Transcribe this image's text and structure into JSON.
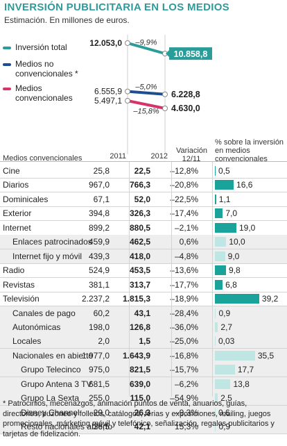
{
  "title": "INVERSIÓN PUBLICITARIA EN LOS MEDIOS",
  "subtitle": "Estimación. En millones de euros.",
  "colors": {
    "total": "#2a9d9a",
    "no_convencionales": "#1d4e8f",
    "convencionales": "#d6336c",
    "bar_main": "#1aa39a",
    "bar_sub": "#bfe6e3",
    "title": "#2e9a9a"
  },
  "chart_data": [
    {
      "type": "line",
      "x": [
        "2011",
        "2012"
      ],
      "series": [
        {
          "name": "Inversión total",
          "values": [
            12053.0,
            10858.8
          ],
          "labels": [
            "12.053,0",
            "10.858,8"
          ],
          "change": "–9,9%"
        },
        {
          "name": "Medios no convencionales *",
          "values": [
            6555.9,
            6228.8
          ],
          "labels": [
            "6.555,9",
            "6.228,8"
          ],
          "change": "–5,0%"
        },
        {
          "name": "Medios convencionales",
          "values": [
            5497.1,
            4630.0
          ],
          "labels": [
            "5.497,1",
            "4.630,0"
          ],
          "change": "–15,8%"
        }
      ]
    },
    {
      "type": "table",
      "columns": [
        "Medios convencionales",
        "2011",
        "2012",
        "Variación 12/11",
        "% sobre la inversión en medios convencionales"
      ],
      "rows": [
        {
          "name": "Cine",
          "level": 0,
          "v2011": "25,8",
          "v2012": "22,5",
          "var": "–12,8%",
          "pct": 0.5,
          "pct_label": "0,5"
        },
        {
          "name": "Diarios",
          "level": 0,
          "v2011": "967,0",
          "v2012": "766,3",
          "var": "–20,8%",
          "pct": 16.6,
          "pct_label": "16,6"
        },
        {
          "name": "Dominicales",
          "level": 0,
          "v2011": "67,1",
          "v2012": "52,0",
          "var": "–22,5%",
          "pct": 1.1,
          "pct_label": "1,1"
        },
        {
          "name": "Exterior",
          "level": 0,
          "v2011": "394,8",
          "v2012": "326,3",
          "var": "–17,4%",
          "pct": 7.0,
          "pct_label": "7,0"
        },
        {
          "name": "Internet",
          "level": 0,
          "v2011": "899,2",
          "v2012": "880,5",
          "var": "–2,1%",
          "pct": 19.0,
          "pct_label": "19,0"
        },
        {
          "name": "Enlaces patrocinados",
          "level": 1,
          "v2011": "459,9",
          "v2012": "462,5",
          "var": "0,6%",
          "pct": 10.0,
          "pct_label": "10,0"
        },
        {
          "name": "Internet fijo y móvil",
          "level": 1,
          "v2011": "439,3",
          "v2012": "418,0",
          "var": "–4,8%",
          "pct": 9.0,
          "pct_label": "9,0"
        },
        {
          "name": "Radio",
          "level": 0,
          "v2011": "524,9",
          "v2012": "453,5",
          "var": "–13,6%",
          "pct": 9.8,
          "pct_label": "9,8"
        },
        {
          "name": "Revistas",
          "level": 0,
          "v2011": "381,1",
          "v2012": "313,7",
          "var": "–17,7%",
          "pct": 6.8,
          "pct_label": "6,8"
        },
        {
          "name": "Televisión",
          "level": 0,
          "v2011": "2.237,2",
          "v2012": "1.815,3",
          "var": "–18,9%",
          "pct": 39.2,
          "pct_label": "39,2"
        },
        {
          "name": "Canales de pago",
          "level": 1,
          "v2011": "60,2",
          "v2012": "43,1",
          "var": "–28,4%",
          "pct": 0.9,
          "pct_label": "0,9"
        },
        {
          "name": "Autonómicas",
          "level": 1,
          "v2011": "198,0",
          "v2012": "126,8",
          "var": "–36,0%",
          "pct": 2.7,
          "pct_label": "2,7"
        },
        {
          "name": "Locales",
          "level": 1,
          "v2011": "2,0",
          "v2012": "1,5",
          "var": "–25,0%",
          "pct": 0.03,
          "pct_label": "0,03"
        },
        {
          "name": "Nacionales en abierto",
          "level": 1,
          "v2011": "1.977,0",
          "v2012": "1.643,9",
          "var": "–16,8%",
          "pct": 35.5,
          "pct_label": "35,5"
        },
        {
          "name": "Grupo Telecinco",
          "level": 2,
          "v2011": "975,0",
          "v2012": "821,5",
          "var": "–15,7%",
          "pct": 17.7,
          "pct_label": "17,7"
        },
        {
          "name": "Grupo Antena 3 TV",
          "level": 2,
          "v2011": "681,5",
          "v2012": "639,0",
          "var": "–6,2%",
          "pct": 13.8,
          "pct_label": "13,8"
        },
        {
          "name": "Grupo La Sexta",
          "level": 2,
          "v2011": "255,0",
          "v2012": "115,0",
          "var": "–54,9%",
          "pct": 2.5,
          "pct_label": "2,5"
        },
        {
          "name": "Disney Channel",
          "level": 2,
          "v2011": "29,0",
          "v2012": "26,3",
          "var": "–9,3%",
          "pct": 0.6,
          "pct_label": "0,6"
        },
        {
          "name": "Resto nacionales abierto",
          "level": 2,
          "v2011": "36,5",
          "v2012": "42,1",
          "var": "15,3%",
          "pct": 0.9,
          "pct_label": "0,9"
        }
      ]
    }
  ],
  "headers": {
    "medios": "Medios convencionales",
    "y2011": "2011",
    "y2012": "2012",
    "variacion_1": "Variación",
    "variacion_2": "12/11",
    "pct_1": "% sobre la inversión",
    "pct_2": "en medios",
    "pct_3": "convencionales"
  },
  "legend": {
    "total": "Inversión total",
    "noconv_1": "Medios no",
    "noconv_2": "convencionales *",
    "conv_1": "Medios",
    "conv_2": "convencionales"
  },
  "footnote": "* Patrocinios, mecenazgos, animación puntos de venta, anuarios, guías, directorios, buzoneo y folletos, catálogos, ferias y exposiciones, mailing, juegos promocionales, márketing móvil y telefónico, señalización, regalos publicitarios y tarjetas de fidelización."
}
